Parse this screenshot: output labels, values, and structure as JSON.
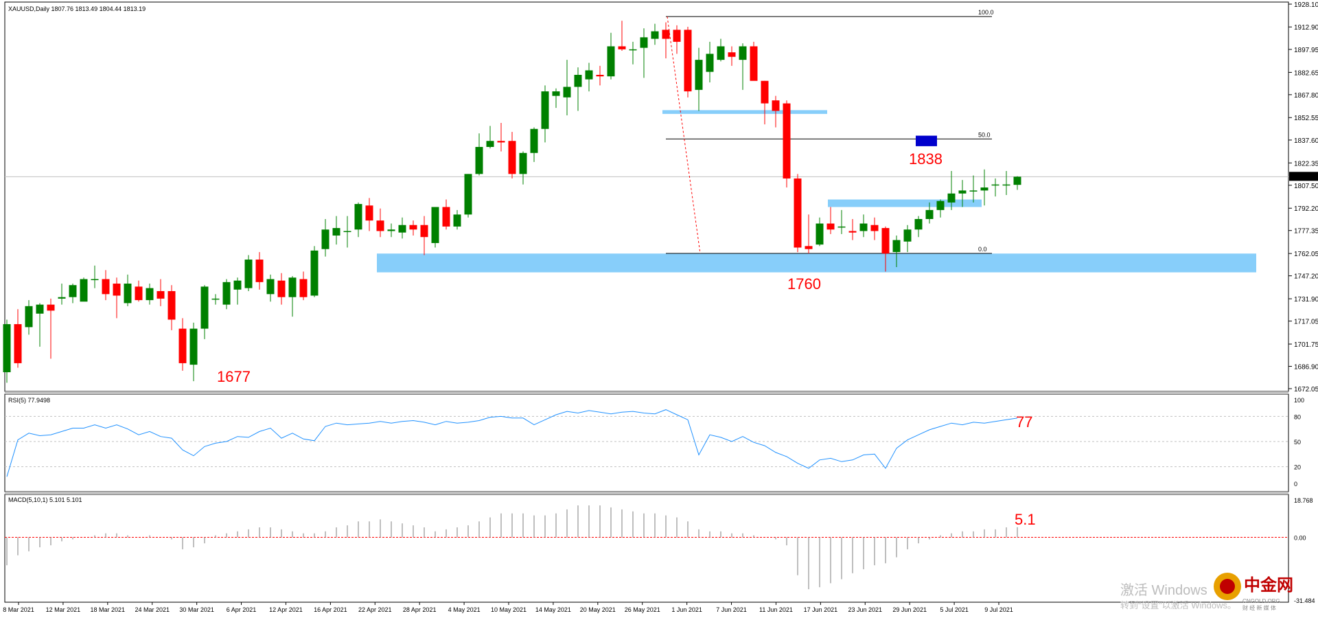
{
  "window": {
    "header": "XAUUSD,Daily  1807.76 1813.49 1804.44 1813.19",
    "current_price": "1813.19"
  },
  "price_axis": [
    "1928.10",
    "1912.90",
    "1897.95",
    "1882.65",
    "1867.80",
    "1852.55",
    "1837.60",
    "1822.35",
    "1807.50",
    "1792.20",
    "1777.35",
    "1762.05",
    "1747.20",
    "1731.90",
    "1717.05",
    "1701.75",
    "1686.90",
    "1672.05"
  ],
  "date_axis": [
    "8 Mar 2021",
    "12 Mar 2021",
    "18 Mar 2021",
    "24 Mar 2021",
    "30 Mar 2021",
    "6 Apr 2021",
    "12 Apr 2021",
    "16 Apr 2021",
    "22 Apr 2021",
    "28 Apr 2021",
    "4 May 2021",
    "10 May 2021",
    "14 May 2021",
    "20 May 2021",
    "26 May 2021",
    "1 Jun 2021",
    "7 Jun 2021",
    "11 Jun 2021",
    "17 Jun 2021",
    "23 Jun 2021",
    "29 Jun 2021",
    "5 Jul 2021",
    "9 Jul 2021"
  ],
  "fibo_levels": [
    "100.0",
    "50.0",
    "0.0"
  ],
  "annotations": {
    "low_label": "1677",
    "support_label": "1760",
    "target_label": "1838",
    "rsi_value": "77",
    "macd_value": "5.1"
  },
  "rsi_panel": {
    "header": "RSI(5) 77.9498",
    "levels": [
      "100",
      "80",
      "50",
      "20",
      "0"
    ]
  },
  "macd_panel": {
    "header": "MACD(5,10,1) 5.101 5.101",
    "levels": [
      "18.768",
      "0.00",
      "-31.484"
    ]
  },
  "watermark": {
    "line1": "激活 Windows",
    "line2": "转到“设置”以激活 Windows。",
    "brand": "中金网",
    "brand_sub": "CNGOLD.ORG",
    "brand_sub2": "财 经 新 媒 体"
  },
  "colors": {
    "bull": "#008000",
    "bear": "#ff0000",
    "zone": "#87cefa",
    "rsi_line": "#1e90ff",
    "target_box": "#0000cc"
  },
  "chart_data": {
    "type": "candlestick",
    "symbol": "XAUUSD",
    "timeframe": "Daily",
    "ylim": [
      1672.05,
      1928.1
    ],
    "candles": [
      {
        "o": 1683,
        "h": 1718,
        "l": 1676,
        "c": 1715
      },
      {
        "o": 1715,
        "h": 1725,
        "l": 1686,
        "c": 1689
      },
      {
        "o": 1713,
        "h": 1731,
        "l": 1708,
        "c": 1727
      },
      {
        "o": 1722,
        "h": 1729,
        "l": 1700,
        "c": 1728
      },
      {
        "o": 1728,
        "h": 1732,
        "l": 1692,
        "c": 1724
      },
      {
        "o": 1732,
        "h": 1742,
        "l": 1728,
        "c": 1733
      },
      {
        "o": 1733,
        "h": 1742,
        "l": 1729,
        "c": 1741
      },
      {
        "o": 1730,
        "h": 1746,
        "l": 1731,
        "c": 1745
      },
      {
        "o": 1745,
        "h": 1754,
        "l": 1739,
        "c": 1745
      },
      {
        "o": 1745,
        "h": 1751,
        "l": 1731,
        "c": 1735
      },
      {
        "o": 1742,
        "h": 1746,
        "l": 1719,
        "c": 1734
      },
      {
        "o": 1729,
        "h": 1748,
        "l": 1727,
        "c": 1742
      },
      {
        "o": 1740,
        "h": 1744,
        "l": 1730,
        "c": 1731
      },
      {
        "o": 1731,
        "h": 1742,
        "l": 1728,
        "c": 1739
      },
      {
        "o": 1737,
        "h": 1745,
        "l": 1727,
        "c": 1732
      },
      {
        "o": 1737,
        "h": 1741,
        "l": 1711,
        "c": 1718
      },
      {
        "o": 1712,
        "h": 1719,
        "l": 1684,
        "c": 1689
      },
      {
        "o": 1688,
        "h": 1716,
        "l": 1677,
        "c": 1712
      },
      {
        "o": 1712,
        "h": 1741,
        "l": 1705,
        "c": 1740
      },
      {
        "o": 1732,
        "h": 1735,
        "l": 1728,
        "c": 1732
      },
      {
        "o": 1728,
        "h": 1745,
        "l": 1725,
        "c": 1743
      },
      {
        "o": 1738,
        "h": 1746,
        "l": 1728,
        "c": 1744
      },
      {
        "o": 1739,
        "h": 1761,
        "l": 1737,
        "c": 1758
      },
      {
        "o": 1758,
        "h": 1763,
        "l": 1738,
        "c": 1743
      },
      {
        "o": 1735,
        "h": 1748,
        "l": 1730,
        "c": 1745
      },
      {
        "o": 1744,
        "h": 1749,
        "l": 1728,
        "c": 1733
      },
      {
        "o": 1733,
        "h": 1747,
        "l": 1720,
        "c": 1746
      },
      {
        "o": 1745,
        "h": 1750,
        "l": 1731,
        "c": 1733
      },
      {
        "o": 1734,
        "h": 1767,
        "l": 1733,
        "c": 1764
      },
      {
        "o": 1765,
        "h": 1785,
        "l": 1760,
        "c": 1778
      },
      {
        "o": 1774,
        "h": 1787,
        "l": 1768,
        "c": 1779
      },
      {
        "o": 1777,
        "h": 1787,
        "l": 1766,
        "c": 1777
      },
      {
        "o": 1778,
        "h": 1796,
        "l": 1773,
        "c": 1795
      },
      {
        "o": 1794,
        "h": 1799,
        "l": 1777,
        "c": 1784
      },
      {
        "o": 1784,
        "h": 1792,
        "l": 1773,
        "c": 1777
      },
      {
        "o": 1777,
        "h": 1782,
        "l": 1773,
        "c": 1778
      },
      {
        "o": 1776,
        "h": 1786,
        "l": 1772,
        "c": 1781
      },
      {
        "o": 1781,
        "h": 1784,
        "l": 1774,
        "c": 1778
      },
      {
        "o": 1781,
        "h": 1787,
        "l": 1761,
        "c": 1773
      },
      {
        "o": 1769,
        "h": 1793,
        "l": 1766,
        "c": 1793
      },
      {
        "o": 1793,
        "h": 1798,
        "l": 1778,
        "c": 1780
      },
      {
        "o": 1780,
        "h": 1791,
        "l": 1778,
        "c": 1788
      },
      {
        "o": 1788,
        "h": 1815,
        "l": 1786,
        "c": 1815
      },
      {
        "o": 1815,
        "h": 1842,
        "l": 1814,
        "c": 1833
      },
      {
        "o": 1833,
        "h": 1847,
        "l": 1832,
        "c": 1837
      },
      {
        "o": 1837,
        "h": 1849,
        "l": 1830,
        "c": 1836
      },
      {
        "o": 1837,
        "h": 1843,
        "l": 1812,
        "c": 1815
      },
      {
        "o": 1815,
        "h": 1830,
        "l": 1808,
        "c": 1829
      },
      {
        "o": 1829,
        "h": 1846,
        "l": 1823,
        "c": 1845
      },
      {
        "o": 1845,
        "h": 1874,
        "l": 1836,
        "c": 1870
      },
      {
        "o": 1867,
        "h": 1872,
        "l": 1859,
        "c": 1870
      },
      {
        "o": 1866,
        "h": 1891,
        "l": 1854,
        "c": 1873
      },
      {
        "o": 1873,
        "h": 1886,
        "l": 1857,
        "c": 1881
      },
      {
        "o": 1878,
        "h": 1889,
        "l": 1870,
        "c": 1884
      },
      {
        "o": 1881,
        "h": 1887,
        "l": 1874,
        "c": 1880
      },
      {
        "o": 1880,
        "h": 1909,
        "l": 1878,
        "c": 1900
      },
      {
        "o": 1900,
        "h": 1917,
        "l": 1897,
        "c": 1898
      },
      {
        "o": 1898,
        "h": 1903,
        "l": 1888,
        "c": 1898
      },
      {
        "o": 1899,
        "h": 1912,
        "l": 1879,
        "c": 1906
      },
      {
        "o": 1905,
        "h": 1915,
        "l": 1901,
        "c": 1910
      },
      {
        "o": 1911,
        "h": 1916,
        "l": 1892,
        "c": 1905
      },
      {
        "o": 1911,
        "h": 1914,
        "l": 1895,
        "c": 1903
      },
      {
        "o": 1911,
        "h": 1913,
        "l": 1866,
        "c": 1870
      },
      {
        "o": 1871,
        "h": 1899,
        "l": 1857,
        "c": 1891
      },
      {
        "o": 1883,
        "h": 1903,
        "l": 1876,
        "c": 1895
      },
      {
        "o": 1891,
        "h": 1905,
        "l": 1890,
        "c": 1900
      },
      {
        "o": 1896,
        "h": 1900,
        "l": 1887,
        "c": 1893
      },
      {
        "o": 1891,
        "h": 1902,
        "l": 1871,
        "c": 1900
      },
      {
        "o": 1900,
        "h": 1903,
        "l": 1878,
        "c": 1877
      },
      {
        "o": 1877,
        "h": 1877,
        "l": 1848,
        "c": 1862
      },
      {
        "o": 1864,
        "h": 1867,
        "l": 1846,
        "c": 1857
      },
      {
        "o": 1862,
        "h": 1864,
        "l": 1806,
        "c": 1812
      },
      {
        "o": 1812,
        "h": 1815,
        "l": 1763,
        "c": 1766
      },
      {
        "o": 1767,
        "h": 1788,
        "l": 1762,
        "c": 1765
      },
      {
        "o": 1768,
        "h": 1786,
        "l": 1767,
        "c": 1782
      },
      {
        "o": 1782,
        "h": 1793,
        "l": 1775,
        "c": 1778
      },
      {
        "o": 1780,
        "h": 1791,
        "l": 1775,
        "c": 1780
      },
      {
        "o": 1777,
        "h": 1785,
        "l": 1771,
        "c": 1776
      },
      {
        "o": 1777,
        "h": 1788,
        "l": 1773,
        "c": 1782
      },
      {
        "o": 1781,
        "h": 1786,
        "l": 1771,
        "c": 1777
      },
      {
        "o": 1779,
        "h": 1780,
        "l": 1750,
        "c": 1762
      },
      {
        "o": 1763,
        "h": 1774,
        "l": 1753,
        "c": 1771
      },
      {
        "o": 1770,
        "h": 1781,
        "l": 1763,
        "c": 1778
      },
      {
        "o": 1778,
        "h": 1787,
        "l": 1773,
        "c": 1785
      },
      {
        "o": 1785,
        "h": 1796,
        "l": 1782,
        "c": 1791
      },
      {
        "o": 1791,
        "h": 1798,
        "l": 1786,
        "c": 1797
      },
      {
        "o": 1796,
        "h": 1817,
        "l": 1791,
        "c": 1802
      },
      {
        "o": 1802,
        "h": 1811,
        "l": 1793,
        "c": 1804
      },
      {
        "o": 1804,
        "h": 1814,
        "l": 1796,
        "c": 1804
      },
      {
        "o": 1804,
        "h": 1818,
        "l": 1794,
        "c": 1806
      },
      {
        "o": 1808,
        "h": 1812,
        "l": 1800,
        "c": 1808
      },
      {
        "o": 1808,
        "h": 1817,
        "l": 1801,
        "c": 1808
      },
      {
        "o": 1807.76,
        "h": 1813.49,
        "l": 1804.44,
        "c": 1813.19
      }
    ],
    "rsi": [
      8,
      52,
      60,
      57,
      58,
      62,
      66,
      66,
      70,
      66,
      70,
      65,
      58,
      62,
      56,
      54,
      40,
      33,
      44,
      48,
      50,
      56,
      55,
      62,
      66,
      54,
      60,
      53,
      51,
      68,
      72,
      70,
      71,
      72,
      74,
      72,
      74,
      75,
      73,
      70,
      74,
      72,
      73,
      75,
      79,
      80,
      78,
      78,
      70,
      76,
      82,
      86,
      84,
      87,
      85,
      83,
      85,
      86,
      84,
      83,
      88,
      82,
      76,
      34,
      58,
      55,
      50,
      56,
      49,
      45,
      37,
      32,
      24,
      18,
      28,
      30,
      26,
      28,
      34,
      35,
      18,
      42,
      52,
      58,
      64,
      68,
      72,
      70,
      73,
      72,
      74,
      76,
      77.95
    ],
    "macd": [
      -14,
      -9,
      -7,
      -5,
      -4,
      -2,
      -1,
      0,
      1,
      2,
      2,
      1,
      0,
      1,
      0,
      -1,
      -6,
      -5,
      -3,
      1,
      2,
      3,
      4,
      5,
      5,
      4,
      3,
      2,
      2,
      3,
      5,
      6,
      8,
      8,
      9,
      8,
      7,
      6,
      5,
      3,
      4,
      5,
      6,
      8,
      10,
      12,
      12,
      12,
      11,
      11,
      12,
      14,
      16,
      16,
      16,
      15,
      14,
      13,
      12,
      12,
      11,
      10,
      8,
      4,
      3,
      3,
      2,
      2,
      1,
      0,
      -1,
      -4,
      -19,
      -26,
      -25,
      -23,
      -21,
      -18,
      -16,
      -14,
      -13,
      -10,
      -6,
      -3,
      -1,
      1,
      2,
      3,
      3,
      4,
      4,
      5,
      5.101
    ]
  }
}
